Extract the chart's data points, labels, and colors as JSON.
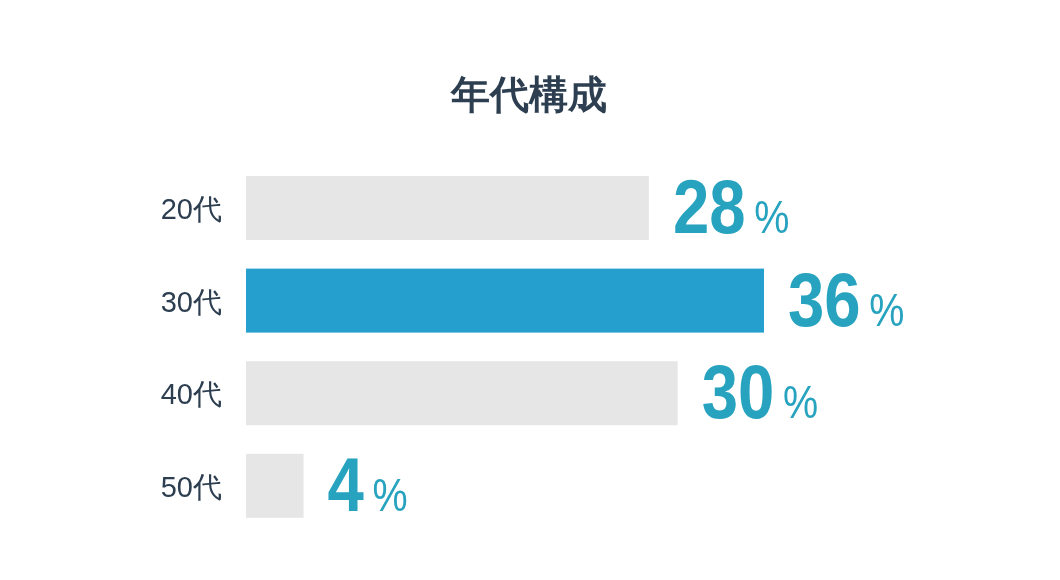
{
  "chart_data": {
    "type": "bar",
    "orientation": "horizontal",
    "title": "年代構成",
    "categories": [
      "20代",
      "30代",
      "40代",
      "50代"
    ],
    "values": [
      28,
      36,
      30,
      4
    ],
    "colors": [
      "#e6e6e6",
      "#259fce",
      "#e6e6e6",
      "#e6e6e6"
    ],
    "value_labels": [
      "28%",
      "36%",
      "30%",
      "4%"
    ]
  }
}
